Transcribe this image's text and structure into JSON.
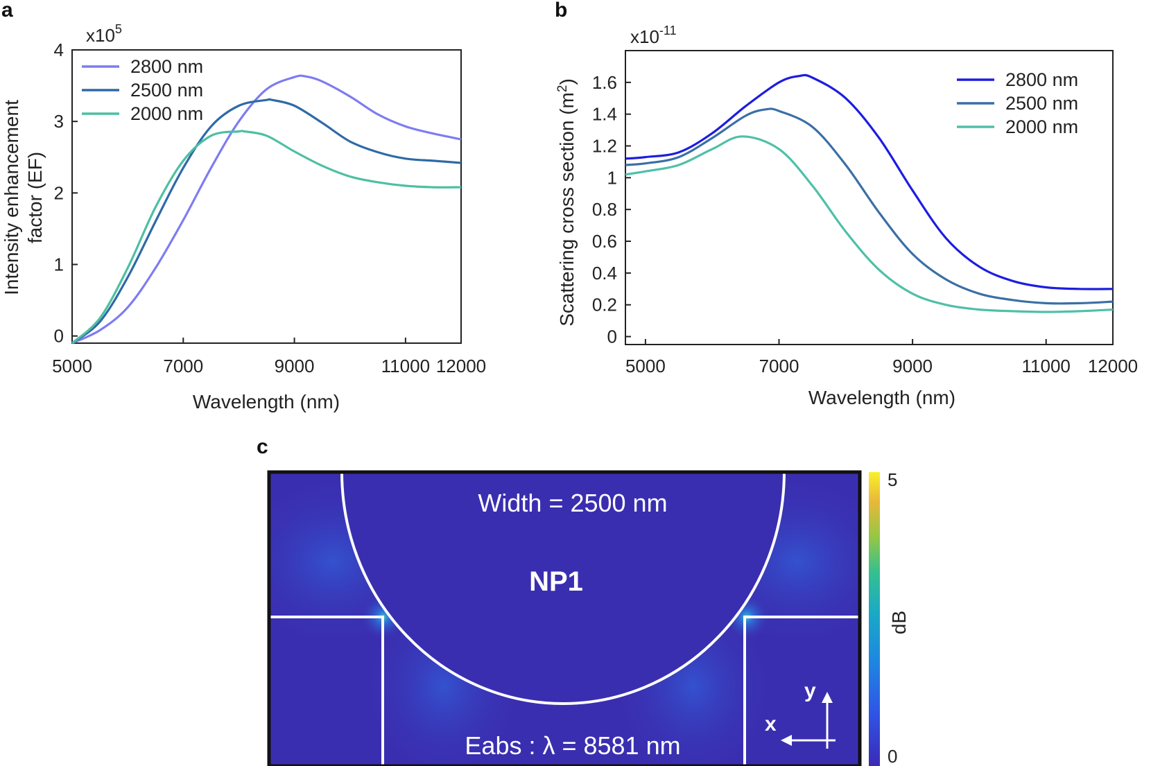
{
  "colors": {
    "s2800": "#7d7cf2",
    "s2500": "#2e6aa6",
    "s2000": "#4dbfa2",
    "b2800": "#1d1de0",
    "b2500": "#3a6fa6",
    "b2000": "#4fbfa8",
    "field_bg": "#3a2eb0"
  },
  "chart_data": [
    {
      "panel": "a",
      "type": "line",
      "ylabel_line1": "Intensity enhancement",
      "ylabel_line2": "factor (EF)",
      "xlabel": "Wavelength (nm)",
      "y_multiplier_base": "x10",
      "y_multiplier_exp": "5",
      "xlim": [
        5000,
        12000
      ],
      "ylim": [
        -0.1,
        4
      ],
      "xticks": [
        5000,
        7000,
        9000,
        11000,
        12000
      ],
      "yticks": [
        0,
        1,
        2,
        3,
        4
      ],
      "series": [
        {
          "name": "2800 nm",
          "color_key": "s2800",
          "x": [
            5000,
            5500,
            6000,
            6500,
            7000,
            7500,
            8000,
            8500,
            9000,
            9200,
            9500,
            10000,
            10500,
            11000,
            11500,
            12000
          ],
          "y": [
            -0.1,
            0.08,
            0.4,
            0.95,
            1.62,
            2.35,
            3.0,
            3.45,
            3.62,
            3.63,
            3.56,
            3.35,
            3.1,
            2.93,
            2.83,
            2.75
          ]
        },
        {
          "name": "2500 nm",
          "color_key": "s2500",
          "x": [
            5000,
            5500,
            6000,
            6500,
            7000,
            7500,
            8000,
            8500,
            8600,
            9000,
            9500,
            10000,
            10500,
            11000,
            11500,
            12000
          ],
          "y": [
            -0.1,
            0.2,
            0.82,
            1.6,
            2.35,
            2.93,
            3.22,
            3.3,
            3.3,
            3.22,
            2.98,
            2.72,
            2.57,
            2.48,
            2.45,
            2.42
          ]
        },
        {
          "name": "2000 nm",
          "color_key": "s2000",
          "x": [
            5000,
            5500,
            6000,
            6500,
            7000,
            7500,
            8000,
            8100,
            8500,
            9000,
            9500,
            10000,
            10500,
            11000,
            11500,
            12000
          ],
          "y": [
            -0.1,
            0.25,
            0.95,
            1.8,
            2.45,
            2.8,
            2.86,
            2.86,
            2.8,
            2.58,
            2.38,
            2.23,
            2.15,
            2.1,
            2.08,
            2.08
          ]
        }
      ]
    },
    {
      "panel": "b",
      "type": "line",
      "ylabel": "Scattering cross section (m",
      "ylabel_exp": "2",
      "ylabel_end": ")",
      "xlabel": "Wavelength (nm)",
      "y_multiplier_base": "x10",
      "y_multiplier_exp": "-11",
      "xlim": [
        4700,
        12000
      ],
      "ylim": [
        -0.05,
        1.8
      ],
      "xticks": [
        5000,
        7000,
        9000,
        11000,
        12000
      ],
      "yticks": [
        0,
        0.2,
        0.4,
        0.6,
        0.8,
        1,
        1.2,
        1.4,
        1.6
      ],
      "ytick_labels": [
        "0",
        "0.2",
        "0.4",
        "0.6",
        "0.8",
        "1",
        "1.2",
        "1.4",
        "1.6"
      ],
      "series": [
        {
          "name": "2800 nm",
          "color_key": "b2800",
          "x": [
            4700,
            5000,
            5500,
            6000,
            6500,
            7000,
            7300,
            7500,
            8000,
            8500,
            9000,
            9500,
            10000,
            10500,
            11000,
            11500,
            12000
          ],
          "y": [
            1.12,
            1.13,
            1.16,
            1.28,
            1.45,
            1.6,
            1.64,
            1.63,
            1.5,
            1.25,
            0.92,
            0.62,
            0.44,
            0.35,
            0.31,
            0.3,
            0.3
          ]
        },
        {
          "name": "2500 nm",
          "color_key": "b2500",
          "x": [
            4700,
            5000,
            5500,
            6000,
            6500,
            6800,
            7000,
            7500,
            8000,
            8500,
            9000,
            9500,
            10000,
            10500,
            11000,
            11500,
            12000
          ],
          "y": [
            1.08,
            1.09,
            1.13,
            1.25,
            1.39,
            1.43,
            1.42,
            1.32,
            1.08,
            0.78,
            0.52,
            0.36,
            0.27,
            0.23,
            0.21,
            0.21,
            0.22
          ]
        },
        {
          "name": "2000 nm",
          "color_key": "b2000",
          "x": [
            4700,
            5000,
            5500,
            6000,
            6450,
            7000,
            7500,
            8000,
            8500,
            9000,
            9500,
            10000,
            10500,
            11000,
            11500,
            12000
          ],
          "y": [
            1.02,
            1.04,
            1.08,
            1.18,
            1.26,
            1.18,
            0.95,
            0.66,
            0.42,
            0.27,
            0.2,
            0.17,
            0.16,
            0.155,
            0.16,
            0.17
          ]
        }
      ]
    }
  ],
  "panel_labels": {
    "a": "a",
    "b": "b",
    "c": "c"
  },
  "panel_c": {
    "width_text": "Width = 2500 nm",
    "np_label": "NP1",
    "eabs_text": "Eabs : λ = 8581 nm",
    "colorbar_max": "5",
    "colorbar_min": "0",
    "colorbar_unit": "dB",
    "axis_y": "y",
    "axis_x": "x"
  }
}
